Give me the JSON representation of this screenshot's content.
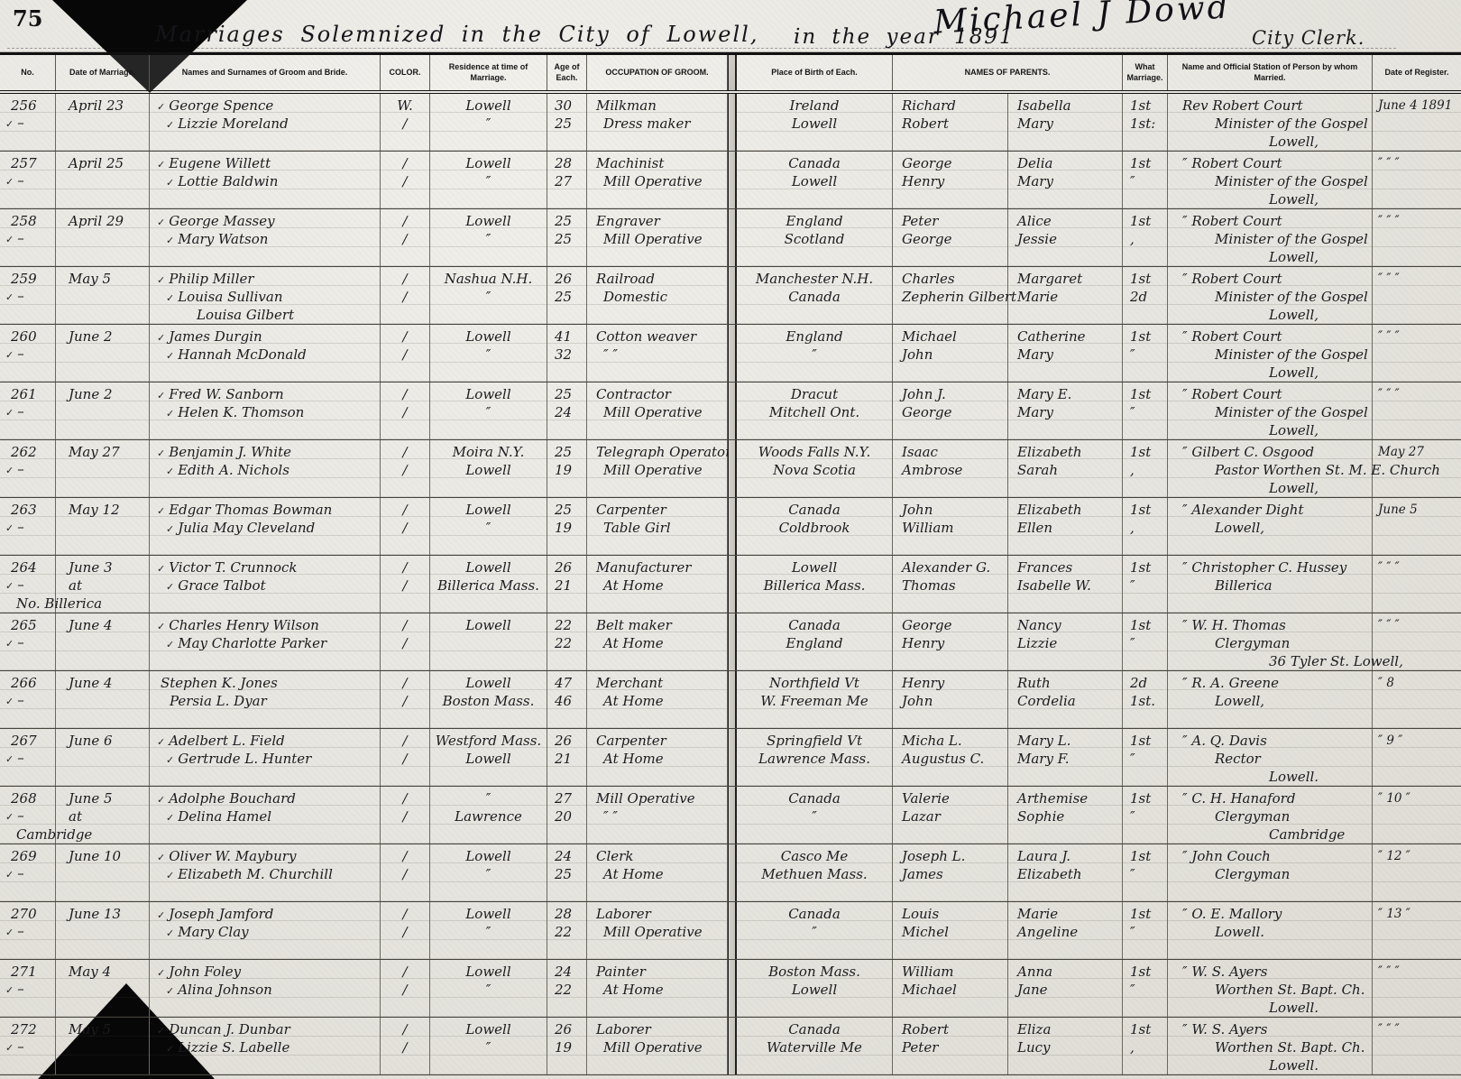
{
  "page": {
    "page_number": "75",
    "title_left": "Marriages Solemnized in the City of Lowell,",
    "title_right": "in the year 1891",
    "signature": "Michael J Dowd",
    "clerk_label": "City Clerk."
  },
  "columns": [
    "No.",
    "Date of Marriage.",
    "Names and Surnames of Groom and Bride.",
    "COLOR.",
    "Residence at time of Marriage.",
    "Age of Each.",
    "OCCUPATION OF GROOM.",
    "Place of Birth of Each.",
    "NAMES OF PARENTS.",
    "What Marriage.",
    "Name and Official Station of Person by whom Married.",
    "Date of Register."
  ],
  "rows": [
    {
      "no": "256",
      "no_check": "✓",
      "no_dash": "–",
      "date": "April 23",
      "date_line2": "",
      "date_line3": "",
      "check_groom": "✓",
      "groom": "George Spence",
      "check_bride": "✓",
      "bride": "Lizzie Moreland",
      "bride_line3": "",
      "color_groom": "W.",
      "color_bride": "∕",
      "res_groom": "Lowell",
      "res_bride": "″",
      "age_groom": "30",
      "age_bride": "25",
      "occ_groom": "Milkman",
      "occ_bride": "Dress maker",
      "birth_groom": "Ireland",
      "birth_bride": "Lowell",
      "father_groom": "Richard",
      "mother_groom": "Isabella",
      "father_bride": "Robert",
      "mother_bride": "Mary",
      "what_groom": "1st",
      "what_bride": "1st:",
      "off1": "Rev Robert Court",
      "off2": "Minister of the Gospel",
      "off3": "Lowell,",
      "reg": "June 4 1891"
    },
    {
      "no": "257",
      "no_check": "✓",
      "no_dash": "–",
      "date": "April 25",
      "date_line2": "",
      "date_line3": "",
      "check_groom": "✓",
      "groom": "Eugene Willett",
      "check_bride": "✓",
      "bride": "Lottie Baldwin",
      "bride_line3": "",
      "color_groom": "∕",
      "color_bride": "∕",
      "res_groom": "Lowell",
      "res_bride": "″",
      "age_groom": "28",
      "age_bride": "27",
      "occ_groom": "Machinist",
      "occ_bride": "Mill Operative",
      "birth_groom": "Canada",
      "birth_bride": "Lowell",
      "father_groom": "George",
      "mother_groom": "Delia",
      "father_bride": "Henry",
      "mother_bride": "Mary",
      "what_groom": "1st",
      "what_bride": "″",
      "off1": "″ Robert Court",
      "off2": "Minister of the Gospel",
      "off3": "Lowell,",
      "reg": "″ ″ ″"
    },
    {
      "no": "258",
      "no_check": "✓",
      "no_dash": "–",
      "date": "April 29",
      "date_line2": "",
      "date_line3": "",
      "check_groom": "✓",
      "groom": "George Massey",
      "check_bride": "✓",
      "bride": "Mary Watson",
      "bride_line3": "",
      "color_groom": "∕",
      "color_bride": "∕",
      "res_groom": "Lowell",
      "res_bride": "″",
      "age_groom": "25",
      "age_bride": "25",
      "occ_groom": "Engraver",
      "occ_bride": "Mill Operative",
      "birth_groom": "England",
      "birth_bride": "Scotland",
      "father_groom": "Peter",
      "mother_groom": "Alice",
      "father_bride": "George",
      "mother_bride": "Jessie",
      "what_groom": "1st",
      "what_bride": ",",
      "off1": "″ Robert Court",
      "off2": "Minister of the Gospel",
      "off3": "Lowell,",
      "reg": "″ ″ ″"
    },
    {
      "no": "259",
      "no_check": "✓",
      "no_dash": "–",
      "date": "May 5",
      "date_line2": "",
      "date_line3": "",
      "check_groom": "✓",
      "groom": "Philip Miller",
      "check_bride": "✓",
      "bride": "Louisa Sullivan",
      "bride_line3": "Louisa Gilbert",
      "color_groom": "∕",
      "color_bride": "∕",
      "res_groom": "Nashua N.H.",
      "res_bride": "″",
      "age_groom": "26",
      "age_bride": "25",
      "occ_groom": "Railroad",
      "occ_bride": "Domestic",
      "birth_groom": "Manchester N.H.",
      "birth_bride": "Canada",
      "father_groom": "Charles",
      "mother_groom": "Margaret",
      "father_bride": "Zepherin Gilbert",
      "mother_bride": "Marie",
      "what_groom": "1st",
      "what_bride": "2d",
      "off1": "″ Robert Court",
      "off2": "Minister of the Gospel",
      "off3": "Lowell,",
      "reg": "″ ″ ″"
    },
    {
      "no": "260",
      "no_check": "✓",
      "no_dash": "–",
      "date": "June 2",
      "date_line2": "",
      "date_line3": "",
      "check_groom": "✓",
      "groom": "James Durgin",
      "check_bride": "✓",
      "bride": "Hannah McDonald",
      "bride_line3": "",
      "color_groom": "∕",
      "color_bride": "∕",
      "res_groom": "Lowell",
      "res_bride": "″",
      "age_groom": "41",
      "age_bride": "32",
      "occ_groom": "Cotton weaver",
      "occ_bride": "″  ″",
      "birth_groom": "England",
      "birth_bride": "″",
      "father_groom": "Michael",
      "mother_groom": "Catherine",
      "father_bride": "John",
      "mother_bride": "Mary",
      "what_groom": "1st",
      "what_bride": "″",
      "off1": "″ Robert Court",
      "off2": "Minister of the Gospel",
      "off3": "Lowell,",
      "reg": "″ ″ ″"
    },
    {
      "no": "261",
      "no_check": "✓",
      "no_dash": "–",
      "date": "June 2",
      "date_line2": "",
      "date_line3": "",
      "check_groom": "✓",
      "groom": "Fred W. Sanborn",
      "check_bride": "✓",
      "bride": "Helen K. Thomson",
      "bride_line3": "",
      "color_groom": "∕",
      "color_bride": "∕",
      "res_groom": "Lowell",
      "res_bride": "″",
      "age_groom": "25",
      "age_bride": "24",
      "occ_groom": "Contractor",
      "occ_bride": "Mill Operative",
      "birth_groom": "Dracut",
      "birth_bride": "Mitchell Ont.",
      "father_groom": "John J.",
      "mother_groom": "Mary E.",
      "father_bride": "George",
      "mother_bride": "Mary",
      "what_groom": "1st",
      "what_bride": "″",
      "off1": "″ Robert Court",
      "off2": "Minister of the Gospel",
      "off3": "Lowell,",
      "reg": "″ ″ ″"
    },
    {
      "no": "262",
      "no_check": "✓",
      "no_dash": "–",
      "date": "May 27",
      "date_line2": "",
      "date_line3": "",
      "check_groom": "✓",
      "groom": "Benjamin J. White",
      "check_bride": "✓",
      "bride": "Edith A. Nichols",
      "bride_line3": "",
      "color_groom": "∕",
      "color_bride": "∕",
      "res_groom": "Moira N.Y.",
      "res_bride": "Lowell",
      "age_groom": "25",
      "age_bride": "19",
      "occ_groom": "Telegraph Operator",
      "occ_bride": "Mill Operative",
      "birth_groom": "Woods Falls N.Y.",
      "birth_bride": "Nova Scotia",
      "father_groom": "Isaac",
      "mother_groom": "Elizabeth",
      "father_bride": "Ambrose",
      "mother_bride": "Sarah",
      "what_groom": "1st",
      "what_bride": ",",
      "off1": "″ Gilbert C. Osgood",
      "off2": "Pastor Worthen St. M. E. Church",
      "off3": "Lowell,",
      "reg": "May 27"
    },
    {
      "no": "263",
      "no_check": "✓",
      "no_dash": "–",
      "date": "May 12",
      "date_line2": "",
      "date_line3": "",
      "check_groom": "✓",
      "groom": "Edgar Thomas Bowman",
      "check_bride": "✓",
      "bride": "Julia May Cleveland",
      "bride_line3": "",
      "color_groom": "∕",
      "color_bride": "∕",
      "res_groom": "Lowell",
      "res_bride": "″",
      "age_groom": "25",
      "age_bride": "19",
      "occ_groom": "Carpenter",
      "occ_bride": "Table Girl",
      "birth_groom": "Canada",
      "birth_bride": "Coldbrook",
      "father_groom": "John",
      "mother_groom": "Elizabeth",
      "father_bride": "William",
      "mother_bride": "Ellen",
      "what_groom": "1st",
      "what_bride": ",",
      "off1": "″ Alexander Dight",
      "off2": "Lowell,",
      "off3": "",
      "reg": "June 5"
    },
    {
      "no": "264",
      "no_check": "✓",
      "no_dash": "–",
      "date": "June 3",
      "date_line2": "at",
      "date_line3": "No. Billerica",
      "check_groom": "✓",
      "groom": "Victor T. Crunnock",
      "check_bride": "✓",
      "bride": "Grace Talbot",
      "bride_line3": "",
      "color_groom": "∕",
      "color_bride": "∕",
      "res_groom": "Lowell",
      "res_bride": "Billerica Mass.",
      "age_groom": "26",
      "age_bride": "21",
      "occ_groom": "Manufacturer",
      "occ_bride": "At Home",
      "birth_groom": "Lowell",
      "birth_bride": "Billerica Mass.",
      "father_groom": "Alexander G.",
      "mother_groom": "Frances",
      "father_bride": "Thomas",
      "mother_bride": "Isabelle W.",
      "what_groom": "1st",
      "what_bride": "″",
      "off1": "″ Christopher C. Hussey",
      "off2": "Billerica",
      "off3": "",
      "reg": "″ ″ ″"
    },
    {
      "no": "265",
      "no_check": "✓",
      "no_dash": "–",
      "date": "June 4",
      "date_line2": "",
      "date_line3": "",
      "check_groom": "✓",
      "groom": "Charles Henry Wilson",
      "check_bride": "✓",
      "bride": "May Charlotte Parker",
      "bride_line3": "",
      "color_groom": "∕",
      "color_bride": "∕",
      "res_groom": "Lowell",
      "res_bride": "",
      "age_groom": "22",
      "age_bride": "22",
      "occ_groom": "Belt maker",
      "occ_bride": "At Home",
      "birth_groom": "Canada",
      "birth_bride": "England",
      "father_groom": "George",
      "mother_groom": "Nancy",
      "father_bride": "Henry",
      "mother_bride": "Lizzie",
      "what_groom": "1st",
      "what_bride": "″",
      "off1": "″ W. H. Thomas",
      "off2": "Clergyman",
      "off3": "36 Tyler St. Lowell,",
      "reg": "″ ″ ″"
    },
    {
      "no": "266",
      "no_check": "✓",
      "no_dash": "–",
      "date": "June 4",
      "date_line2": "",
      "date_line3": "",
      "check_groom": "",
      "groom": "Stephen K. Jones",
      "check_bride": "",
      "bride": "Persia L. Dyar",
      "bride_line3": "",
      "color_groom": "∕",
      "color_bride": "∕",
      "res_groom": "Lowell",
      "res_bride": "Boston Mass.",
      "age_groom": "47",
      "age_bride": "46",
      "occ_groom": "Merchant",
      "occ_bride": "At Home",
      "birth_groom": "Northfield Vt",
      "birth_bride": "W. Freeman Me",
      "father_groom": "Henry",
      "mother_groom": "Ruth",
      "father_bride": "John",
      "mother_bride": "Cordelia",
      "what_groom": "2d",
      "what_bride": "1st.",
      "off1": "″ R. A. Greene",
      "off2": "Lowell,",
      "off3": "",
      "reg": "″ 8"
    },
    {
      "no": "267",
      "no_check": "✓",
      "no_dash": "–",
      "date": "June 6",
      "date_line2": "",
      "date_line3": "",
      "check_groom": "✓",
      "groom": "Adelbert L. Field",
      "check_bride": "✓",
      "bride": "Gertrude L. Hunter",
      "bride_line3": "",
      "color_groom": "∕",
      "color_bride": "∕",
      "res_groom": "Westford Mass.",
      "res_bride": "Lowell",
      "age_groom": "26",
      "age_bride": "21",
      "occ_groom": "Carpenter",
      "occ_bride": "At Home",
      "birth_groom": "Springfield Vt",
      "birth_bride": "Lawrence Mass.",
      "father_groom": "Micha L.",
      "mother_groom": "Mary L.",
      "father_bride": "Augustus C.",
      "mother_bride": "Mary F.",
      "what_groom": "1st",
      "what_bride": "″",
      "off1": "″ A. Q. Davis",
      "off2": "Rector",
      "off3": "Lowell.",
      "reg": "″ 9 ″"
    },
    {
      "no": "268",
      "no_check": "✓",
      "no_dash": "–",
      "date": "June 5",
      "date_line2": "at",
      "date_line3": "Cambridge",
      "check_groom": "✓",
      "groom": "Adolphe Bouchard",
      "check_bride": "✓",
      "bride": "Delina Hamel",
      "bride_line3": "",
      "color_groom": "∕",
      "color_bride": "∕",
      "res_groom": "″",
      "res_bride": "Lawrence",
      "age_groom": "27",
      "age_bride": "20",
      "occ_groom": "Mill Operative",
      "occ_bride": "″  ″",
      "birth_groom": "Canada",
      "birth_bride": "″",
      "father_groom": "Valerie",
      "mother_groom": "Arthemise",
      "father_bride": "Lazar",
      "mother_bride": "Sophie",
      "what_groom": "1st",
      "what_bride": "″",
      "off1": "″ C. H. Hanaford",
      "off2": "Clergyman",
      "off3": "Cambridge",
      "reg": "″ 10 ″"
    },
    {
      "no": "269",
      "no_check": "✓",
      "no_dash": "–",
      "date": "June 10",
      "date_line2": "",
      "date_line3": "",
      "check_groom": "✓",
      "groom": "Oliver W. Maybury",
      "check_bride": "✓",
      "bride": "Elizabeth M. Churchill",
      "bride_line3": "",
      "color_groom": "∕",
      "color_bride": "∕",
      "res_groom": "Lowell",
      "res_bride": "″",
      "age_groom": "24",
      "age_bride": "25",
      "occ_groom": "Clerk",
      "occ_bride": "At Home",
      "birth_groom": "Casco Me",
      "birth_bride": "Methuen Mass.",
      "father_groom": "Joseph L.",
      "mother_groom": "Laura J.",
      "father_bride": "James",
      "mother_bride": "Elizabeth",
      "what_groom": "1st",
      "what_bride": "″",
      "off1": "″ John Couch",
      "off2": "Clergyman",
      "off3": "",
      "reg": "″ 12 ″"
    },
    {
      "no": "270",
      "no_check": "✓",
      "no_dash": "–",
      "date": "June 13",
      "date_line2": "",
      "date_line3": "",
      "check_groom": "✓",
      "groom": "Joseph Jamford",
      "check_bride": "✓",
      "bride": "Mary Clay",
      "bride_line3": "",
      "color_groom": "∕",
      "color_bride": "∕",
      "res_groom": "Lowell",
      "res_bride": "″",
      "age_groom": "28",
      "age_bride": "22",
      "occ_groom": "Laborer",
      "occ_bride": "Mill Operative",
      "birth_groom": "Canada",
      "birth_bride": "″",
      "father_groom": "Louis",
      "mother_groom": "Marie",
      "father_bride": "Michel",
      "mother_bride": "Angeline",
      "what_groom": "1st",
      "what_bride": "″",
      "off1": "″ O. E. Mallory",
      "off2": "Lowell.",
      "off3": "",
      "reg": "″ 13 ″"
    },
    {
      "no": "271",
      "no_check": "✓",
      "no_dash": "–",
      "date": "May 4",
      "date_line2": "",
      "date_line3": "",
      "check_groom": "✓",
      "groom": "John Foley",
      "check_bride": "✓",
      "bride": "Alina Johnson",
      "bride_line3": "",
      "color_groom": "∕",
      "color_bride": "∕",
      "res_groom": "Lowell",
      "res_bride": "″",
      "age_groom": "24",
      "age_bride": "22",
      "occ_groom": "Painter",
      "occ_bride": "At Home",
      "birth_groom": "Boston Mass.",
      "birth_bride": "Lowell",
      "father_groom": "William",
      "mother_groom": "Anna",
      "father_bride": "Michael",
      "mother_bride": "Jane",
      "what_groom": "1st",
      "what_bride": "″",
      "off1": "″ W. S. Ayers",
      "off2": "Worthen St. Bapt. Ch.",
      "off3": "Lowell.",
      "reg": "″ ″ ″"
    },
    {
      "no": "272",
      "no_check": "✓",
      "no_dash": "–",
      "date": "May 5",
      "date_line2": "",
      "date_line3": "",
      "check_groom": "✓",
      "groom": "Duncan J. Dunbar",
      "check_bride": "✓",
      "bride": "Lizzie S. Labelle",
      "bride_line3": "",
      "color_groom": "∕",
      "color_bride": "∕",
      "res_groom": "Lowell",
      "res_bride": "″",
      "age_groom": "26",
      "age_bride": "19",
      "occ_groom": "Laborer",
      "occ_bride": "Mill Operative",
      "birth_groom": "Canada",
      "birth_bride": "Waterville Me",
      "father_groom": "Robert",
      "mother_groom": "Eliza",
      "father_bride": "Peter",
      "mother_bride": "Lucy",
      "what_groom": "1st",
      "what_bride": ",",
      "off1": "″ W. S. Ayers",
      "off2": "Worthen St. Bapt. Ch.",
      "off3": "Lowell.",
      "reg": "″ ″ ″"
    }
  ]
}
